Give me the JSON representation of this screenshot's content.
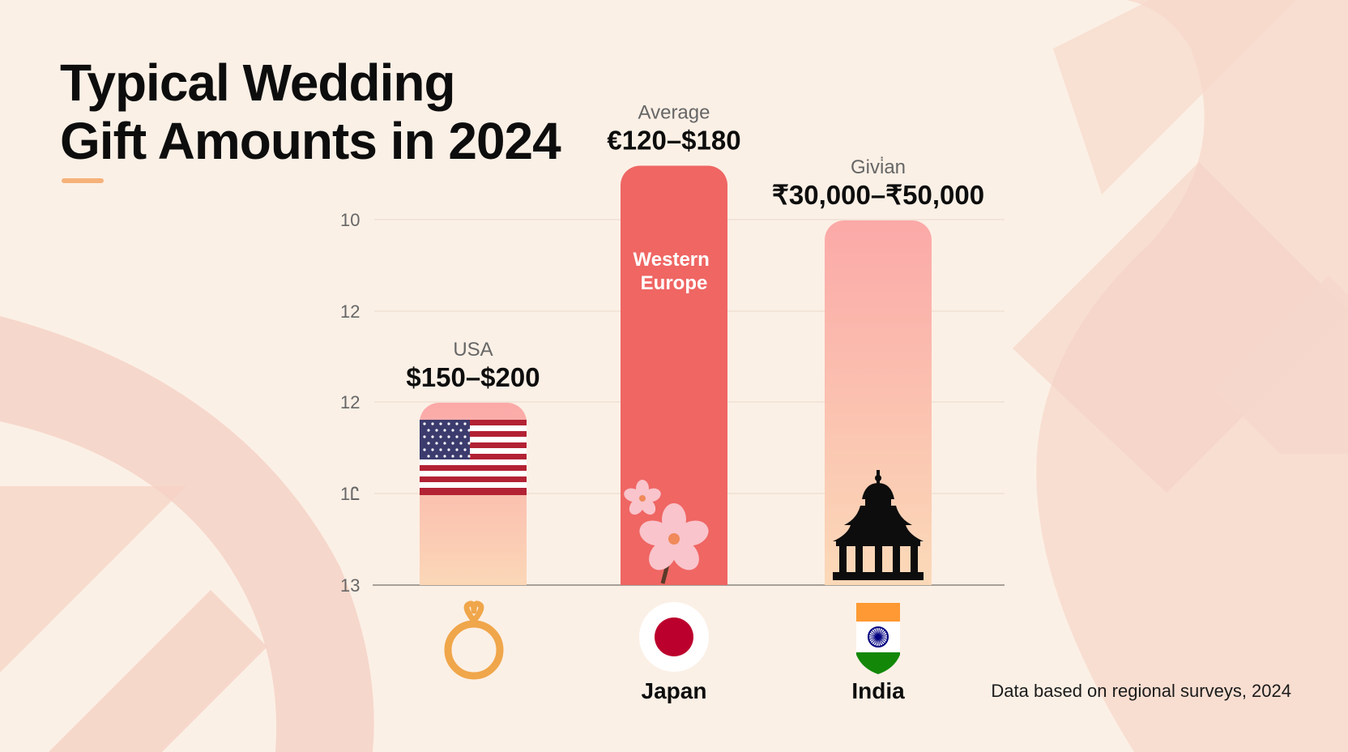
{
  "title": {
    "line1": "Typical Wedding",
    "line2": "Gift Amounts in 2024"
  },
  "source_note": "Data based on regional surveys, 2024",
  "colors": {
    "background": "#fbf0e6",
    "accent_underline": "#f5b27a",
    "bar_usa_top": "#fba9a8",
    "bar_usa_bottom": "#fbdcb9",
    "bar_europe": "#ef6663",
    "bar_india_top": "#fba9a8",
    "bar_india_bottom": "#fbdcb9",
    "ring": "#f0a64a"
  },
  "chart_data": {
    "type": "bar",
    "yticks": [
      "10",
      "12",
      "12",
      "1Ꮭ",
      "13"
    ],
    "grid": true,
    "bars": [
      {
        "category_label": "",
        "top_label": "USA",
        "value_label": "$150–$200",
        "inner_label": "",
        "icon": "us-flag-icon",
        "bottom_icon": "wedding-ring-icon",
        "value": 150
      },
      {
        "category_label": "Japan",
        "top_label": "Average",
        "value_label": "€120–$180",
        "inner_label": "Western Europe",
        "icon": "cherry-blossom-icon",
        "bottom_icon": "japan-flag-icon",
        "value": 345
      },
      {
        "category_label": "India",
        "top_label": "Givi̇an",
        "value_label": "₹30,000–₹50,000",
        "inner_label": "",
        "icon": "temple-icon",
        "bottom_icon": "india-flag-icon",
        "value": 300
      }
    ]
  }
}
